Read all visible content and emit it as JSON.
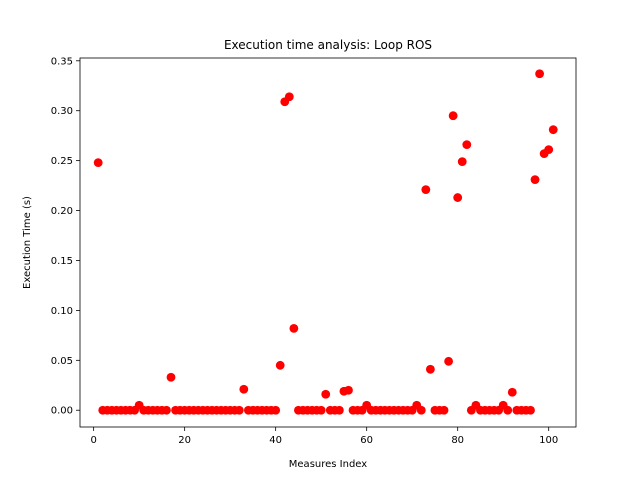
{
  "chart_data": {
    "type": "scatter",
    "title": "Execution time analysis: Loop ROS",
    "xlabel": "Measures Index",
    "ylabel": "Execution Time (s)",
    "xlim": [
      -3.0,
      106.0
    ],
    "ylim": [
      -0.0168,
      0.3528
    ],
    "xticks": [
      0,
      20,
      40,
      60,
      80,
      100
    ],
    "xtick_labels": [
      "0",
      "20",
      "40",
      "60",
      "80",
      "100"
    ],
    "yticks": [
      0.0,
      0.05,
      0.1,
      0.15,
      0.2,
      0.25,
      0.3,
      0.35
    ],
    "ytick_labels": [
      "0.00",
      "0.05",
      "0.10",
      "0.15",
      "0.20",
      "0.25",
      "0.30",
      "0.35"
    ],
    "grid": false,
    "marker_color": "#ff0000",
    "series": [
      {
        "x": [
          1,
          2,
          3,
          4,
          5,
          6,
          7,
          8,
          9,
          10,
          11,
          12,
          13,
          14,
          15,
          16,
          17,
          18,
          19,
          20,
          21,
          22,
          23,
          24,
          25,
          26,
          27,
          28,
          29,
          30,
          31,
          32,
          33,
          34,
          35,
          36,
          37,
          38,
          39,
          40,
          41,
          42,
          43,
          44,
          45,
          46,
          47,
          48,
          49,
          50,
          51,
          52,
          53,
          54,
          55,
          56,
          57,
          58,
          59,
          60,
          61,
          62,
          63,
          64,
          65,
          66,
          67,
          68,
          69,
          70,
          71,
          72,
          73,
          74,
          75,
          76,
          77,
          78,
          79,
          80,
          81,
          82,
          83,
          84,
          85,
          86,
          87,
          88,
          89,
          90,
          91,
          92,
          93,
          94,
          95,
          96,
          97,
          98,
          99,
          100,
          101
        ],
        "y": [
          0.248,
          0.0,
          0.0,
          0.0,
          0.0,
          0.0,
          0.0,
          0.0,
          0.0,
          0.005,
          0.0,
          0.0,
          0.0,
          0.0,
          0.0,
          0.0,
          0.033,
          0.0,
          0.0,
          0.0,
          0.0,
          0.0,
          0.0,
          0.0,
          0.0,
          0.0,
          0.0,
          0.0,
          0.0,
          0.0,
          0.0,
          0.0,
          0.021,
          0.0,
          0.0,
          0.0,
          0.0,
          0.0,
          0.0,
          0.0,
          0.045,
          0.309,
          0.314,
          0.082,
          0.0,
          0.0,
          0.0,
          0.0,
          0.0,
          0.0,
          0.016,
          0.0,
          0.0,
          0.0,
          0.019,
          0.02,
          0.0,
          0.0,
          0.0,
          0.005,
          0.0,
          0.0,
          0.0,
          0.0,
          0.0,
          0.0,
          0.0,
          0.0,
          0.0,
          0.0,
          0.005,
          0.0,
          0.221,
          0.041,
          0.0,
          0.0,
          0.0,
          0.049,
          0.295,
          0.213,
          0.249,
          0.266,
          0.0,
          0.005,
          0.0,
          0.0,
          0.0,
          0.0,
          0.0,
          0.005,
          0.0,
          0.018,
          0.0,
          0.0,
          0.0,
          0.0,
          0.231,
          0.337,
          0.257,
          0.261,
          0.281
        ]
      }
    ]
  }
}
